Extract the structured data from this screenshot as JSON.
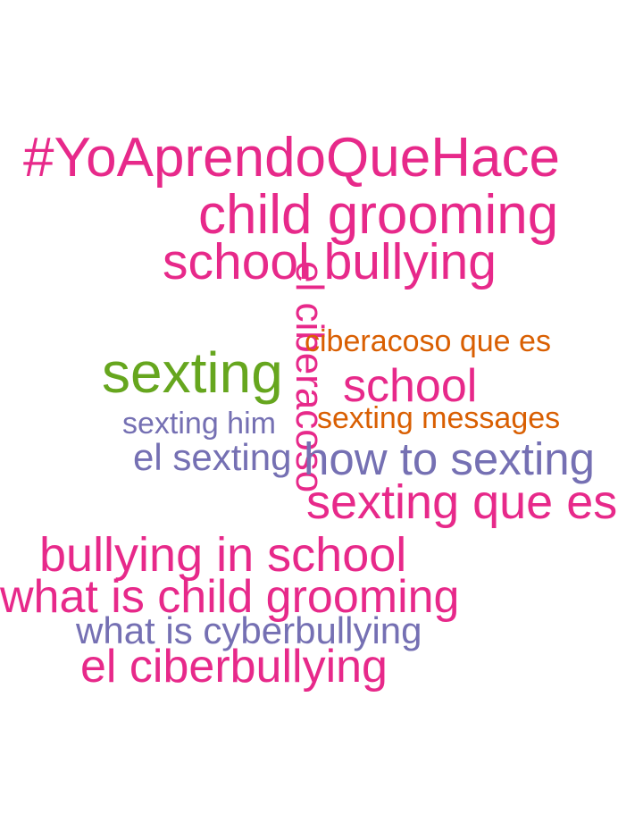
{
  "word_cloud": {
    "words": [
      {
        "text": "#YoAprendoQueHace",
        "color": "#e7298a"
      },
      {
        "text": "child grooming",
        "color": "#e7298a"
      },
      {
        "text": "school bullying",
        "color": "#e7298a"
      },
      {
        "text": "el ciberacoso",
        "color": "#e7298a"
      },
      {
        "text": "ciberacoso que es",
        "color": "#d95f02"
      },
      {
        "text": "sexting",
        "color": "#66a61e"
      },
      {
        "text": "school",
        "color": "#e7298a"
      },
      {
        "text": "sexting him",
        "color": "#7570b3"
      },
      {
        "text": "sexting messages",
        "color": "#d95f02"
      },
      {
        "text": "el sexting",
        "color": "#7570b3"
      },
      {
        "text": "how to sexting",
        "color": "#7570b3"
      },
      {
        "text": "sexting que es",
        "color": "#e7298a"
      },
      {
        "text": "bullying in school",
        "color": "#e7298a"
      },
      {
        "text": "what is child grooming",
        "color": "#e7298a"
      },
      {
        "text": "what is cyberbullying",
        "color": "#7570b3"
      },
      {
        "text": "el ciberbullying",
        "color": "#e7298a"
      }
    ]
  }
}
